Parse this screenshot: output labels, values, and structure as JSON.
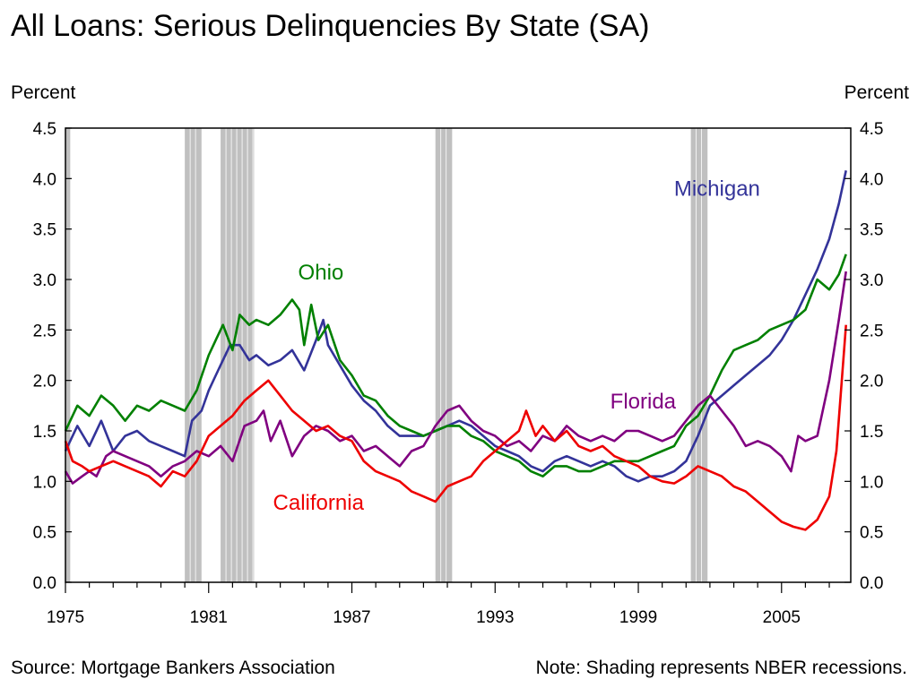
{
  "header": {
    "title": "All Loans: Serious Delinquencies By State (SA)",
    "left_axis_unit": "Percent",
    "right_axis_unit": "Percent"
  },
  "footer": {
    "source": "Source: Mortgage Bankers Association",
    "note": "Note: Shading represents NBER recessions."
  },
  "chart_data": {
    "type": "line",
    "title": "All Loans: Serious Delinquencies By State (SA)",
    "ylabel": "Percent",
    "ylabel_right": "Percent",
    "xlim": [
      1975,
      2007.9
    ],
    "ylim": [
      0,
      4.5
    ],
    "x_ticks": [
      1975,
      1981,
      1987,
      1993,
      1999,
      2005
    ],
    "x_tick_labels": [
      "1975",
      "1981",
      "1987",
      "1993",
      "1999",
      "2005"
    ],
    "y_ticks": [
      0,
      0.5,
      1,
      1.5,
      2,
      2.5,
      3,
      3.5,
      4,
      4.5
    ],
    "y_tick_labels": [
      "0.0",
      "0.5",
      "1.0",
      "1.5",
      "2.0",
      "2.5",
      "3.0",
      "3.5",
      "4.0",
      "4.5"
    ],
    "grid": false,
    "legend": "none (series labeled directly on chart)",
    "recessions": [
      {
        "start": 1975.0,
        "end": 1975.2
      },
      {
        "start": 1980.0,
        "end": 1980.7
      },
      {
        "start": 1981.5,
        "end": 1982.9
      },
      {
        "start": 1990.5,
        "end": 1991.2
      },
      {
        "start": 2001.2,
        "end": 2001.9
      }
    ],
    "series": [
      {
        "name": "Michigan",
        "color": "#333399",
        "label_anchor": {
          "x": 2002.3,
          "y": 3.83
        },
        "points": [
          [
            1975.0,
            1.3
          ],
          [
            1975.5,
            1.55
          ],
          [
            1976.0,
            1.35
          ],
          [
            1976.5,
            1.6
          ],
          [
            1977.0,
            1.3
          ],
          [
            1977.5,
            1.45
          ],
          [
            1978.0,
            1.5
          ],
          [
            1978.5,
            1.4
          ],
          [
            1979.0,
            1.35
          ],
          [
            1979.5,
            1.3
          ],
          [
            1980.0,
            1.25
          ],
          [
            1980.3,
            1.6
          ],
          [
            1980.7,
            1.7
          ],
          [
            1981.0,
            1.9
          ],
          [
            1981.3,
            2.05
          ],
          [
            1981.6,
            2.2
          ],
          [
            1981.9,
            2.35
          ],
          [
            1982.3,
            2.35
          ],
          [
            1982.7,
            2.2
          ],
          [
            1983.0,
            2.25
          ],
          [
            1983.5,
            2.15
          ],
          [
            1984.0,
            2.2
          ],
          [
            1984.5,
            2.3
          ],
          [
            1985.0,
            2.1
          ],
          [
            1985.5,
            2.4
          ],
          [
            1985.8,
            2.6
          ],
          [
            1986.0,
            2.35
          ],
          [
            1986.5,
            2.15
          ],
          [
            1987.0,
            1.95
          ],
          [
            1987.5,
            1.8
          ],
          [
            1988.0,
            1.7
          ],
          [
            1988.5,
            1.55
          ],
          [
            1989.0,
            1.45
          ],
          [
            1989.5,
            1.45
          ],
          [
            1990.0,
            1.45
          ],
          [
            1990.5,
            1.5
          ],
          [
            1991.0,
            1.55
          ],
          [
            1991.5,
            1.6
          ],
          [
            1992.0,
            1.55
          ],
          [
            1992.5,
            1.45
          ],
          [
            1993.0,
            1.35
          ],
          [
            1993.5,
            1.3
          ],
          [
            1994.0,
            1.25
          ],
          [
            1994.5,
            1.15
          ],
          [
            1995.0,
            1.1
          ],
          [
            1995.5,
            1.2
          ],
          [
            1996.0,
            1.25
          ],
          [
            1996.5,
            1.2
          ],
          [
            1997.0,
            1.15
          ],
          [
            1997.5,
            1.2
          ],
          [
            1998.0,
            1.15
          ],
          [
            1998.5,
            1.05
          ],
          [
            1999.0,
            1.0
          ],
          [
            1999.5,
            1.05
          ],
          [
            2000.0,
            1.05
          ],
          [
            2000.5,
            1.1
          ],
          [
            2001.0,
            1.2
          ],
          [
            2001.5,
            1.45
          ],
          [
            2002.0,
            1.75
          ],
          [
            2002.5,
            1.85
          ],
          [
            2003.0,
            1.95
          ],
          [
            2003.5,
            2.05
          ],
          [
            2004.0,
            2.15
          ],
          [
            2004.5,
            2.25
          ],
          [
            2005.0,
            2.4
          ],
          [
            2005.5,
            2.6
          ],
          [
            2006.0,
            2.85
          ],
          [
            2006.5,
            3.1
          ],
          [
            2007.0,
            3.4
          ],
          [
            2007.4,
            3.75
          ],
          [
            2007.7,
            4.08
          ]
        ]
      },
      {
        "name": "Ohio",
        "color": "#008000",
        "label_anchor": {
          "x": 1985.7,
          "y": 3.0
        },
        "points": [
          [
            1975.0,
            1.5
          ],
          [
            1975.5,
            1.75
          ],
          [
            1976.0,
            1.65
          ],
          [
            1976.5,
            1.85
          ],
          [
            1977.0,
            1.75
          ],
          [
            1977.5,
            1.6
          ],
          [
            1978.0,
            1.75
          ],
          [
            1978.5,
            1.7
          ],
          [
            1979.0,
            1.8
          ],
          [
            1979.5,
            1.75
          ],
          [
            1980.0,
            1.7
          ],
          [
            1980.5,
            1.9
          ],
          [
            1981.0,
            2.25
          ],
          [
            1981.3,
            2.4
          ],
          [
            1981.6,
            2.55
          ],
          [
            1982.0,
            2.3
          ],
          [
            1982.3,
            2.65
          ],
          [
            1982.7,
            2.55
          ],
          [
            1983.0,
            2.6
          ],
          [
            1983.5,
            2.55
          ],
          [
            1984.0,
            2.65
          ],
          [
            1984.5,
            2.8
          ],
          [
            1984.8,
            2.7
          ],
          [
            1985.0,
            2.35
          ],
          [
            1985.3,
            2.75
          ],
          [
            1985.6,
            2.4
          ],
          [
            1986.0,
            2.55
          ],
          [
            1986.5,
            2.2
          ],
          [
            1987.0,
            2.05
          ],
          [
            1987.5,
            1.85
          ],
          [
            1988.0,
            1.8
          ],
          [
            1988.5,
            1.65
          ],
          [
            1989.0,
            1.55
          ],
          [
            1989.5,
            1.5
          ],
          [
            1990.0,
            1.45
          ],
          [
            1990.5,
            1.5
          ],
          [
            1991.0,
            1.55
          ],
          [
            1991.5,
            1.55
          ],
          [
            1992.0,
            1.45
          ],
          [
            1992.5,
            1.4
          ],
          [
            1993.0,
            1.3
          ],
          [
            1993.5,
            1.25
          ],
          [
            1994.0,
            1.2
          ],
          [
            1994.5,
            1.1
          ],
          [
            1995.0,
            1.05
          ],
          [
            1995.5,
            1.15
          ],
          [
            1996.0,
            1.15
          ],
          [
            1996.5,
            1.1
          ],
          [
            1997.0,
            1.1
          ],
          [
            1997.5,
            1.15
          ],
          [
            1998.0,
            1.2
          ],
          [
            1998.5,
            1.2
          ],
          [
            1999.0,
            1.2
          ],
          [
            1999.5,
            1.25
          ],
          [
            2000.0,
            1.3
          ],
          [
            2000.5,
            1.35
          ],
          [
            2001.0,
            1.55
          ],
          [
            2001.5,
            1.65
          ],
          [
            2002.0,
            1.85
          ],
          [
            2002.5,
            2.1
          ],
          [
            2003.0,
            2.3
          ],
          [
            2003.5,
            2.35
          ],
          [
            2004.0,
            2.4
          ],
          [
            2004.5,
            2.5
          ],
          [
            2005.0,
            2.55
          ],
          [
            2005.5,
            2.6
          ],
          [
            2006.0,
            2.7
          ],
          [
            2006.5,
            3.0
          ],
          [
            2007.0,
            2.9
          ],
          [
            2007.4,
            3.05
          ],
          [
            2007.7,
            3.25
          ]
        ]
      },
      {
        "name": "Florida",
        "color": "#800080",
        "label_anchor": {
          "x": 1999.2,
          "y": 1.72
        },
        "points": [
          [
            1975.0,
            1.1
          ],
          [
            1975.3,
            0.98
          ],
          [
            1975.7,
            1.05
          ],
          [
            1976.0,
            1.1
          ],
          [
            1976.3,
            1.05
          ],
          [
            1976.7,
            1.25
          ],
          [
            1977.0,
            1.3
          ],
          [
            1977.5,
            1.25
          ],
          [
            1978.0,
            1.2
          ],
          [
            1978.5,
            1.15
          ],
          [
            1979.0,
            1.05
          ],
          [
            1979.5,
            1.15
          ],
          [
            1980.0,
            1.2
          ],
          [
            1980.5,
            1.3
          ],
          [
            1981.0,
            1.25
          ],
          [
            1981.5,
            1.35
          ],
          [
            1982.0,
            1.2
          ],
          [
            1982.5,
            1.55
          ],
          [
            1983.0,
            1.6
          ],
          [
            1983.3,
            1.7
          ],
          [
            1983.6,
            1.4
          ],
          [
            1984.0,
            1.6
          ],
          [
            1984.5,
            1.25
          ],
          [
            1985.0,
            1.45
          ],
          [
            1985.5,
            1.55
          ],
          [
            1986.0,
            1.5
          ],
          [
            1986.5,
            1.4
          ],
          [
            1987.0,
            1.45
          ],
          [
            1987.5,
            1.3
          ],
          [
            1988.0,
            1.35
          ],
          [
            1988.5,
            1.25
          ],
          [
            1989.0,
            1.15
          ],
          [
            1989.5,
            1.3
          ],
          [
            1990.0,
            1.35
          ],
          [
            1990.5,
            1.55
          ],
          [
            1991.0,
            1.7
          ],
          [
            1991.5,
            1.75
          ],
          [
            1992.0,
            1.6
          ],
          [
            1992.5,
            1.5
          ],
          [
            1993.0,
            1.45
          ],
          [
            1993.5,
            1.35
          ],
          [
            1994.0,
            1.4
          ],
          [
            1994.5,
            1.3
          ],
          [
            1995.0,
            1.45
          ],
          [
            1995.5,
            1.4
          ],
          [
            1996.0,
            1.55
          ],
          [
            1996.5,
            1.45
          ],
          [
            1997.0,
            1.4
          ],
          [
            1997.5,
            1.45
          ],
          [
            1998.0,
            1.4
          ],
          [
            1998.5,
            1.5
          ],
          [
            1999.0,
            1.5
          ],
          [
            1999.5,
            1.45
          ],
          [
            2000.0,
            1.4
          ],
          [
            2000.5,
            1.45
          ],
          [
            2001.0,
            1.6
          ],
          [
            2001.5,
            1.75
          ],
          [
            2002.0,
            1.85
          ],
          [
            2002.5,
            1.7
          ],
          [
            2003.0,
            1.55
          ],
          [
            2003.5,
            1.35
          ],
          [
            2004.0,
            1.4
          ],
          [
            2004.5,
            1.35
          ],
          [
            2005.0,
            1.25
          ],
          [
            2005.4,
            1.1
          ],
          [
            2005.7,
            1.45
          ],
          [
            2006.0,
            1.4
          ],
          [
            2006.5,
            1.45
          ],
          [
            2007.0,
            2.0
          ],
          [
            2007.4,
            2.6
          ],
          [
            2007.7,
            3.08
          ]
        ]
      },
      {
        "name": "California",
        "color": "#ee0000",
        "label_anchor": {
          "x": 1985.6,
          "y": 0.72
        },
        "points": [
          [
            1975.0,
            1.4
          ],
          [
            1975.3,
            1.2
          ],
          [
            1975.7,
            1.15
          ],
          [
            1976.0,
            1.1
          ],
          [
            1976.5,
            1.15
          ],
          [
            1977.0,
            1.2
          ],
          [
            1977.5,
            1.15
          ],
          [
            1978.0,
            1.1
          ],
          [
            1978.5,
            1.05
          ],
          [
            1979.0,
            0.95
          ],
          [
            1979.5,
            1.1
          ],
          [
            1980.0,
            1.05
          ],
          [
            1980.5,
            1.2
          ],
          [
            1981.0,
            1.45
          ],
          [
            1981.5,
            1.55
          ],
          [
            1982.0,
            1.65
          ],
          [
            1982.5,
            1.8
          ],
          [
            1983.0,
            1.9
          ],
          [
            1983.5,
            2.0
          ],
          [
            1984.0,
            1.85
          ],
          [
            1984.5,
            1.7
          ],
          [
            1985.0,
            1.6
          ],
          [
            1985.5,
            1.5
          ],
          [
            1986.0,
            1.55
          ],
          [
            1986.5,
            1.45
          ],
          [
            1987.0,
            1.4
          ],
          [
            1987.5,
            1.2
          ],
          [
            1988.0,
            1.1
          ],
          [
            1988.5,
            1.05
          ],
          [
            1989.0,
            1.0
          ],
          [
            1989.5,
            0.9
          ],
          [
            1990.0,
            0.85
          ],
          [
            1990.5,
            0.8
          ],
          [
            1991.0,
            0.95
          ],
          [
            1991.5,
            1.0
          ],
          [
            1992.0,
            1.05
          ],
          [
            1992.5,
            1.2
          ],
          [
            1993.0,
            1.3
          ],
          [
            1993.5,
            1.4
          ],
          [
            1994.0,
            1.5
          ],
          [
            1994.3,
            1.7
          ],
          [
            1994.7,
            1.45
          ],
          [
            1995.0,
            1.55
          ],
          [
            1995.5,
            1.4
          ],
          [
            1996.0,
            1.5
          ],
          [
            1996.5,
            1.35
          ],
          [
            1997.0,
            1.3
          ],
          [
            1997.5,
            1.35
          ],
          [
            1998.0,
            1.25
          ],
          [
            1998.5,
            1.2
          ],
          [
            1999.0,
            1.15
          ],
          [
            1999.5,
            1.05
          ],
          [
            2000.0,
            1.0
          ],
          [
            2000.5,
            0.98
          ],
          [
            2001.0,
            1.05
          ],
          [
            2001.5,
            1.15
          ],
          [
            2002.0,
            1.1
          ],
          [
            2002.5,
            1.05
          ],
          [
            2003.0,
            0.95
          ],
          [
            2003.5,
            0.9
          ],
          [
            2004.0,
            0.8
          ],
          [
            2004.5,
            0.7
          ],
          [
            2005.0,
            0.6
          ],
          [
            2005.5,
            0.55
          ],
          [
            2006.0,
            0.52
          ],
          [
            2006.5,
            0.62
          ],
          [
            2007.0,
            0.85
          ],
          [
            2007.3,
            1.3
          ],
          [
            2007.7,
            2.55
          ]
        ]
      }
    ]
  }
}
